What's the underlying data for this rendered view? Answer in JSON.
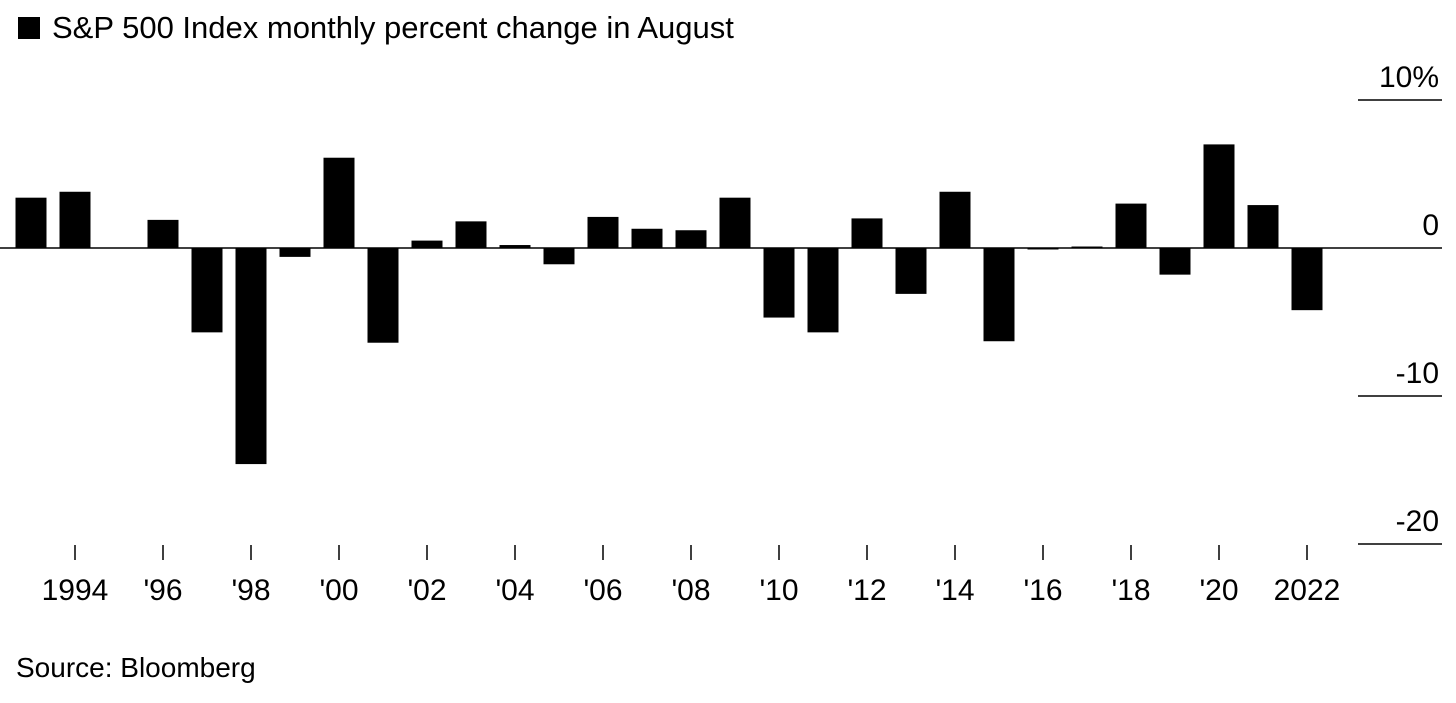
{
  "legend": {
    "label": "S&P 500 Index monthly percent change in August",
    "swatch_color": "#000000"
  },
  "source": "Source: Bloomberg",
  "chart_data": {
    "type": "bar",
    "title": "S&P 500 Index monthly percent change in August",
    "xlabel": "",
    "ylabel": "",
    "ylim": [
      -20,
      10
    ],
    "y_ticks": [
      10,
      0,
      -10,
      -20
    ],
    "y_tick_labels": [
      "10%",
      "0",
      "-10",
      "-20"
    ],
    "x_tick_labels": [
      {
        "year": 1994,
        "label": "1994"
      },
      {
        "year": 1996,
        "label": "'96"
      },
      {
        "year": 1998,
        "label": "'98"
      },
      {
        "year": 2000,
        "label": "'00"
      },
      {
        "year": 2002,
        "label": "'02"
      },
      {
        "year": 2004,
        "label": "'04"
      },
      {
        "year": 2006,
        "label": "'06"
      },
      {
        "year": 2008,
        "label": "'08"
      },
      {
        "year": 2010,
        "label": "'10"
      },
      {
        "year": 2012,
        "label": "'12"
      },
      {
        "year": 2014,
        "label": "'14"
      },
      {
        "year": 2016,
        "label": "'16"
      },
      {
        "year": 2018,
        "label": "'18"
      },
      {
        "year": 2020,
        "label": "'20"
      },
      {
        "year": 2022,
        "label": "2022"
      }
    ],
    "categories": [
      1993,
      1994,
      1995,
      1996,
      1997,
      1998,
      1999,
      2000,
      2001,
      2002,
      2003,
      2004,
      2005,
      2006,
      2007,
      2008,
      2009,
      2010,
      2011,
      2012,
      2013,
      2014,
      2015,
      2016,
      2017,
      2018,
      2019,
      2020,
      2021,
      2022
    ],
    "values": [
      3.4,
      3.8,
      0.0,
      1.9,
      -5.7,
      -14.6,
      -0.6,
      6.1,
      -6.4,
      0.5,
      1.8,
      0.2,
      -1.1,
      2.1,
      1.3,
      1.2,
      3.4,
      -4.7,
      -5.7,
      2.0,
      -3.1,
      3.8,
      -6.3,
      -0.1,
      0.1,
      3.0,
      -1.8,
      7.0,
      2.9,
      -4.2
    ],
    "bar_color": "#000000",
    "grid": false,
    "legend_position": "top-left"
  }
}
